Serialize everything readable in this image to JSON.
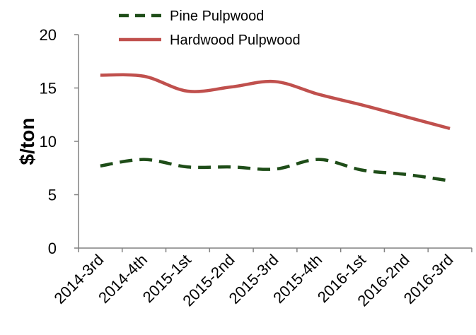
{
  "chart_data": {
    "type": "line",
    "title": "",
    "xlabel": "",
    "ylabel": "$/ton",
    "ylim": [
      0,
      20
    ],
    "yticks": [
      "0",
      "5",
      "10",
      "15",
      "20"
    ],
    "grid": false,
    "legend": "top",
    "categories": [
      "2014-3rd",
      "2014-4th",
      "2015-1st",
      "2015-2nd",
      "2015-3rd",
      "2015-4th",
      "2016-1st",
      "2016-2nd",
      "2016-3rd"
    ],
    "series": [
      {
        "name": "Pine Pulpwood",
        "color": "#1e4d18",
        "dash": "dashed",
        "values": [
          7.7,
          8.3,
          7.6,
          7.6,
          7.4,
          8.3,
          7.3,
          6.9,
          6.3
        ]
      },
      {
        "name": "Hardwood Pulpwood",
        "color": "#c0504d",
        "dash": "solid",
        "values": [
          16.2,
          16.1,
          14.7,
          15.1,
          15.6,
          14.4,
          13.4,
          12.3,
          11.2
        ]
      }
    ]
  }
}
